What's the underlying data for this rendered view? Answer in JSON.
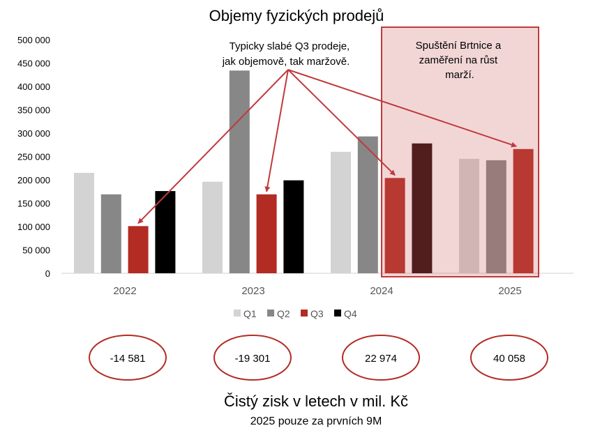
{
  "chart_data": {
    "type": "bar",
    "title": "Objemy fyzických prodejů",
    "categories": [
      "2022",
      "2023",
      "2024",
      "2025"
    ],
    "ylim": [
      0,
      500000
    ],
    "yticks": [
      0,
      50000,
      100000,
      150000,
      200000,
      250000,
      300000,
      350000,
      400000,
      450000,
      500000
    ],
    "ytick_labels": [
      "0",
      "50 000",
      "100 000",
      "150 000",
      "200 000",
      "250 000",
      "300 000",
      "350 000",
      "400 000",
      "450 000",
      "500 000"
    ],
    "grid": false,
    "legend_position": "bottom",
    "series": [
      {
        "name": "Q1",
        "color": "#d3d3d3",
        "values": [
          215000,
          196000,
          260000,
          245000
        ]
      },
      {
        "name": "Q2",
        "color": "#878787",
        "values": [
          169000,
          434000,
          293000,
          242000
        ]
      },
      {
        "name": "Q3",
        "color": "#b22c24",
        "values": [
          101000,
          169000,
          204000,
          266000
        ]
      },
      {
        "name": "Q4",
        "color": "#000000",
        "values": [
          176000,
          199000,
          278000,
          null
        ]
      }
    ],
    "annotations": {
      "q3_note": [
        "Typicky slabé Q3 prodeje,",
        "jak objemově, tak maržově."
      ],
      "highlight_note": [
        "Spuštění Brtnice a",
        "zaměření na růst",
        "marží."
      ]
    }
  },
  "profit": {
    "values": [
      "-14 581",
      "-19 301",
      "22 974",
      "40 058"
    ],
    "title": "Čistý zisk v letech v mil. Kč",
    "subtitle": "2025 pouze za prvních 9M"
  },
  "colors": {
    "accent": "#c0393b",
    "highlight_fill": "#f2d4d3"
  }
}
